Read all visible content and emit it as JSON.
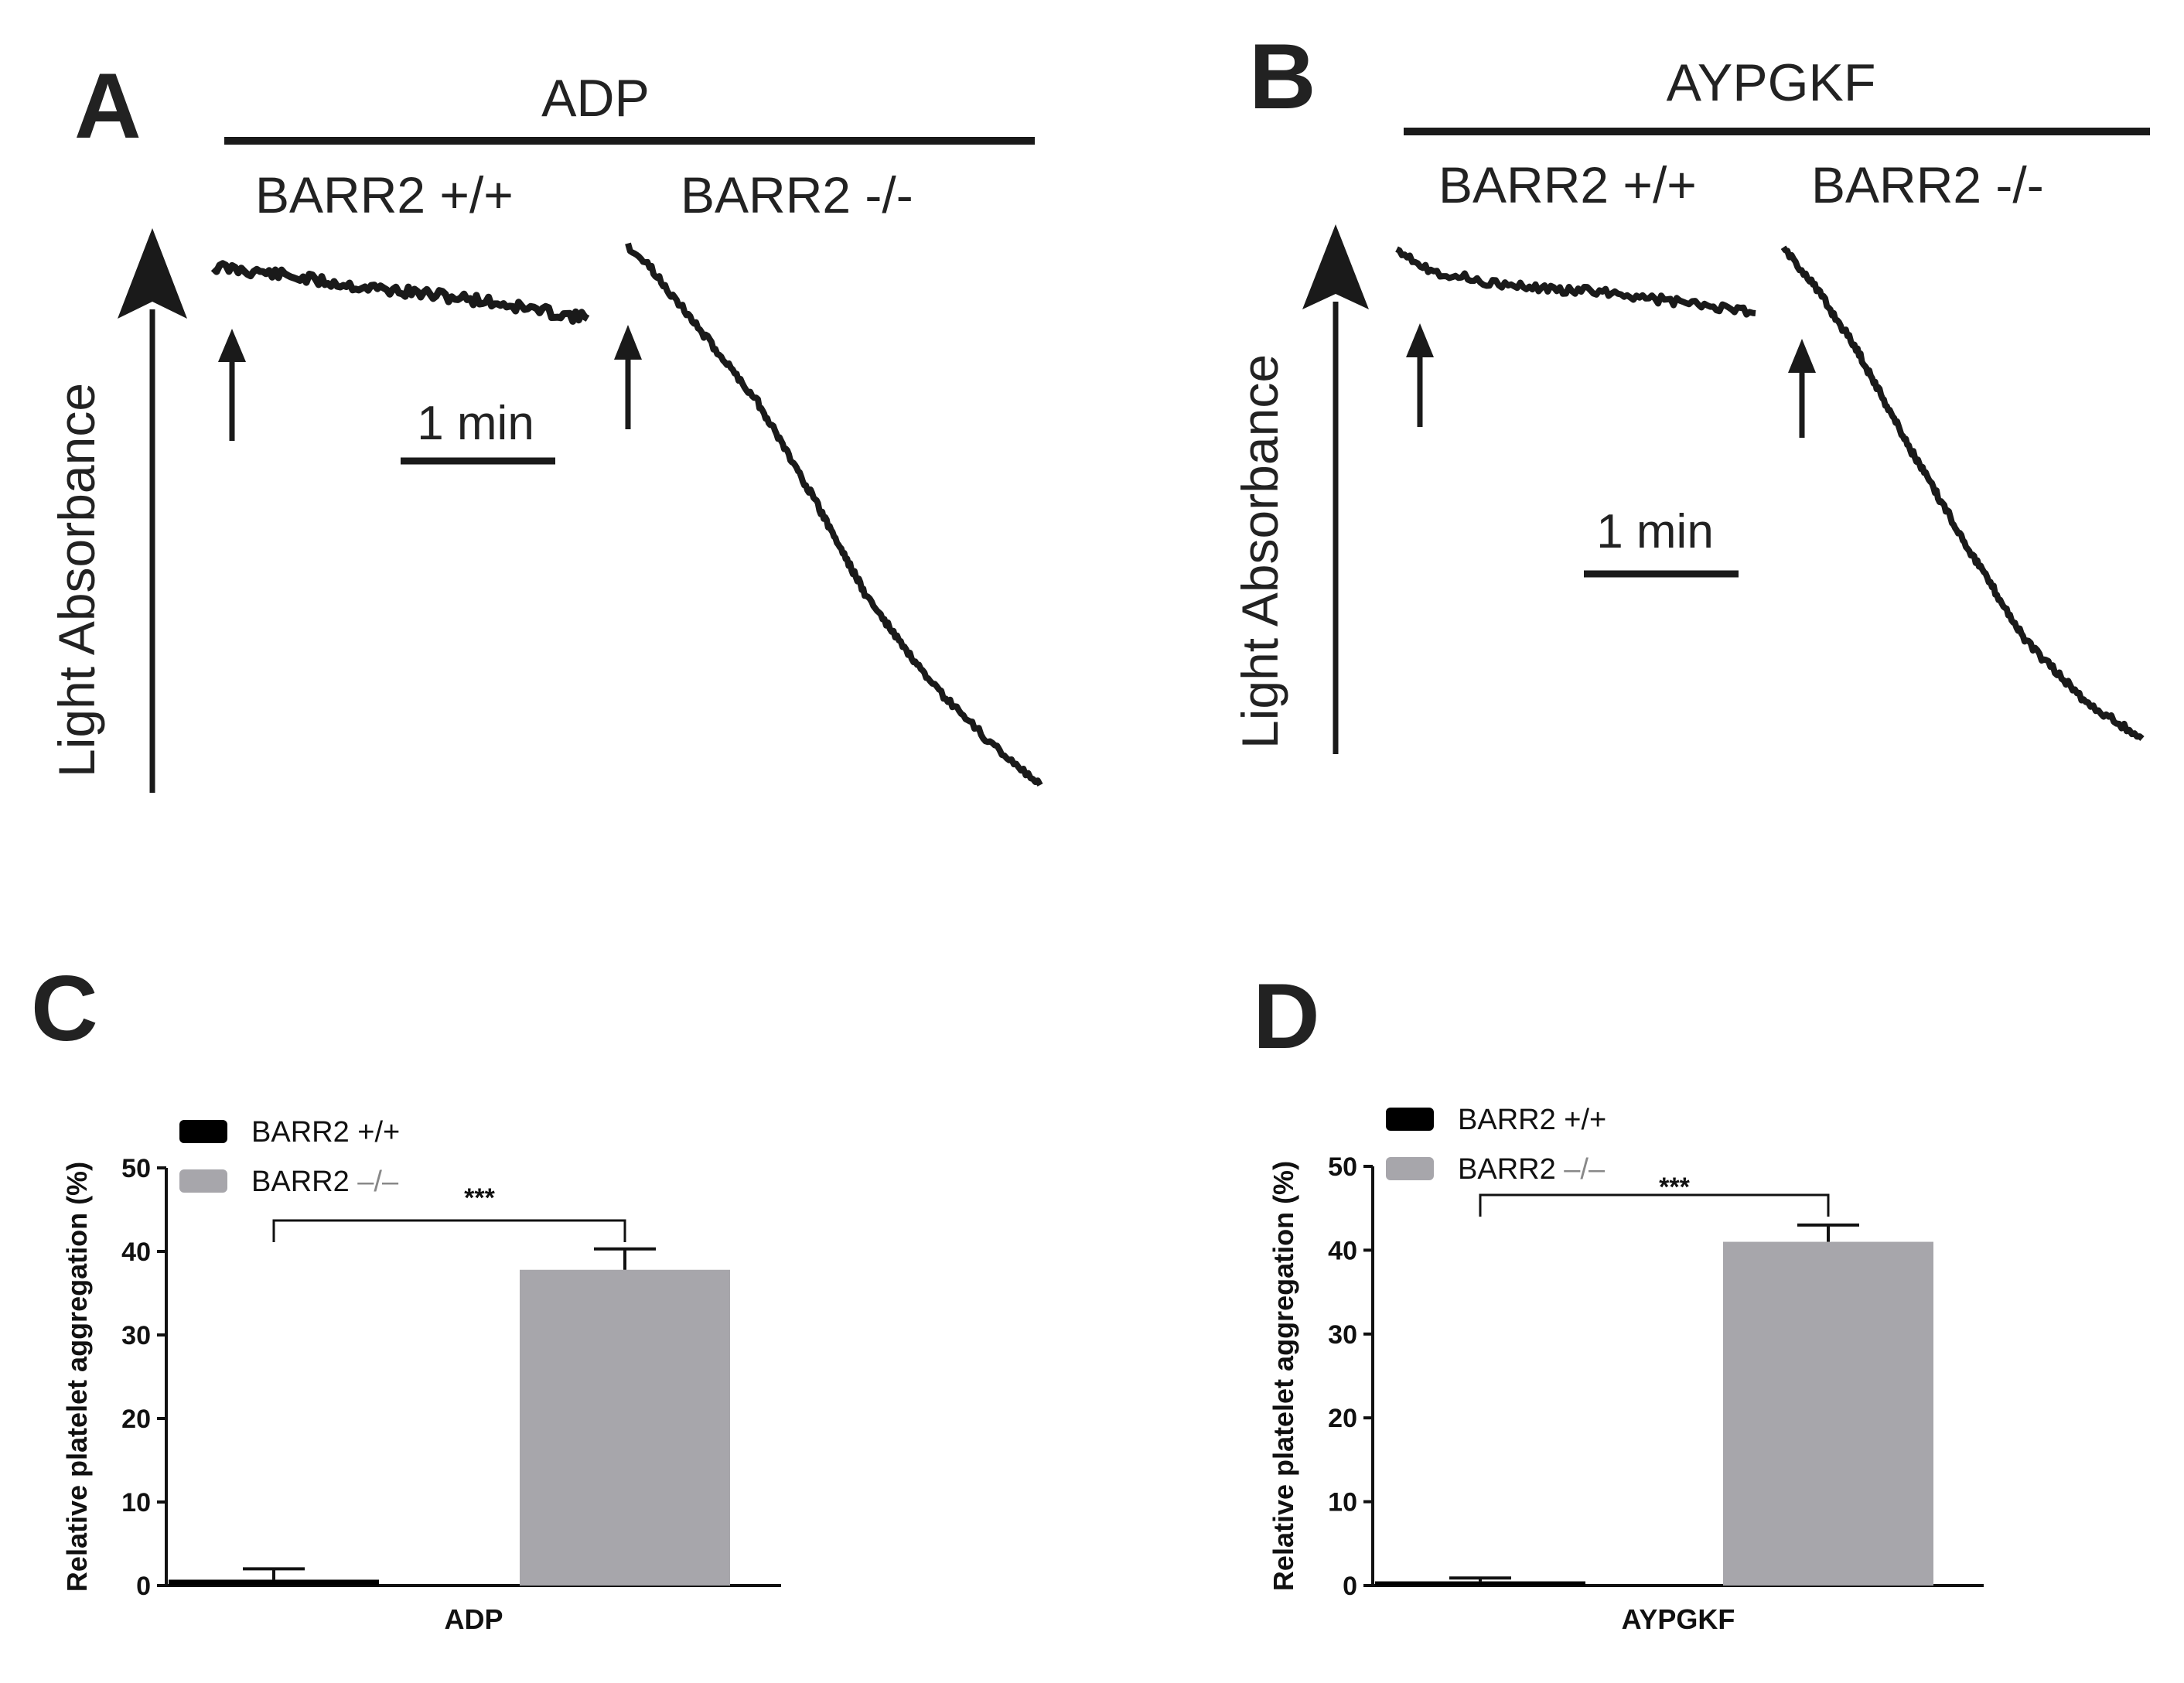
{
  "colors": {
    "wild_type": "#000000",
    "knockout": "#a7a6ab",
    "ink": "#1a1a1a"
  },
  "panel_a": {
    "letter": "A",
    "agonist": "ADP",
    "left_group": "BARR2 +/+",
    "right_group": "BARR2 -/-",
    "y_label": "Light Absorbance",
    "scale_bar": "1 min"
  },
  "panel_b": {
    "letter": "B",
    "agonist": "AYPGKF",
    "left_group": "BARR2 +/+",
    "right_group": "BARR2 -/-",
    "y_label": "Light Absorbance",
    "scale_bar": "1 min"
  },
  "panel_c": {
    "letter": "C",
    "legend_wt": "BARR2 +/+",
    "legend_ko_prefix": "BARR2 ",
    "legend_ko_suffix": "–/–",
    "significance": "***"
  },
  "panel_d": {
    "letter": "D",
    "legend_wt": "BARR2 +/+",
    "legend_ko_prefix": "BARR2 ",
    "legend_ko_suffix": "–/–",
    "significance": "***"
  },
  "chart_data": [
    {
      "type": "bar",
      "panel": "C",
      "xlabel": "ADP",
      "ylabel": "Relative platelet aggregation (%)",
      "ylim": [
        0,
        50
      ],
      "yticks": [
        "0",
        "10",
        "20",
        "30",
        "40",
        "50"
      ],
      "categories": [
        "ADP"
      ],
      "series": [
        {
          "name": "BARR2 +/+",
          "values": [
            0.7
          ],
          "error": [
            1.3
          ]
        },
        {
          "name": "BARR2 –/–",
          "values": [
            37.8
          ],
          "error": [
            2.5
          ]
        }
      ],
      "legend": "top-left",
      "grid": false
    },
    {
      "type": "bar",
      "panel": "D",
      "xlabel": "AYPGKF",
      "ylabel": "Relative platelet aggregation (%)",
      "ylim": [
        0,
        50
      ],
      "yticks": [
        "0",
        "10",
        "20",
        "30",
        "40",
        "50"
      ],
      "categories": [
        "AYPGKF"
      ],
      "series": [
        {
          "name": "BARR2 +/+",
          "values": [
            0.5
          ],
          "error": [
            0.4
          ]
        },
        {
          "name": "BARR2 –/–",
          "values": [
            41.0
          ],
          "error": [
            2.0
          ]
        }
      ],
      "legend": "top-left",
      "grid": false
    }
  ]
}
